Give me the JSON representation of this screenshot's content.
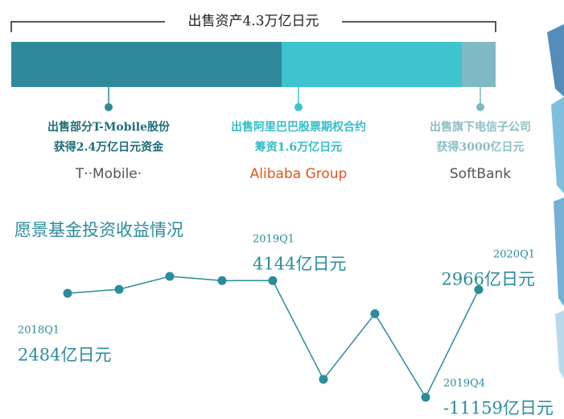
{
  "chart_data": [
    {
      "type": "stacked-bar",
      "title": "出售资产4.3万亿日元",
      "series": [
        {
          "name": "出售部分T-Mobile股份",
          "value_label": "获得2.4万亿日元资金",
          "color": "#2e8a9a",
          "label_color": "#1f6d79",
          "values": [
            2.4
          ],
          "logo": "T··Mobile·"
        },
        {
          "name": "出售阿里巴巴股票期权合约",
          "value_label": "筹资1.6万亿日元",
          "color": "#3ec4cf",
          "label_color": "#35bcc8",
          "values": [
            1.6
          ],
          "logo": "Alibaba Group"
        },
        {
          "name": "出售旗下电信子公司",
          "value_label": "获得3000亿日元",
          "color": "#7fb9c3",
          "label_color": "#8dbec6",
          "values": [
            0.3
          ],
          "logo": "SoftBank"
        }
      ]
    },
    {
      "type": "line",
      "title": "愿景基金投资收益情况",
      "categories": [
        "2018Q1",
        null,
        null,
        null,
        "2019Q1",
        null,
        null,
        "2019Q4",
        "2020Q1"
      ],
      "values": [
        2484,
        3000,
        4700,
        4144,
        4144,
        -8800,
        -200,
        -11159,
        2966
      ],
      "value_labels": [
        "2484亿日元",
        null,
        null,
        null,
        "4144亿日元",
        null,
        null,
        "-11159亿日元",
        "2966亿日元"
      ],
      "color": "#2a8c9c"
    }
  ]
}
